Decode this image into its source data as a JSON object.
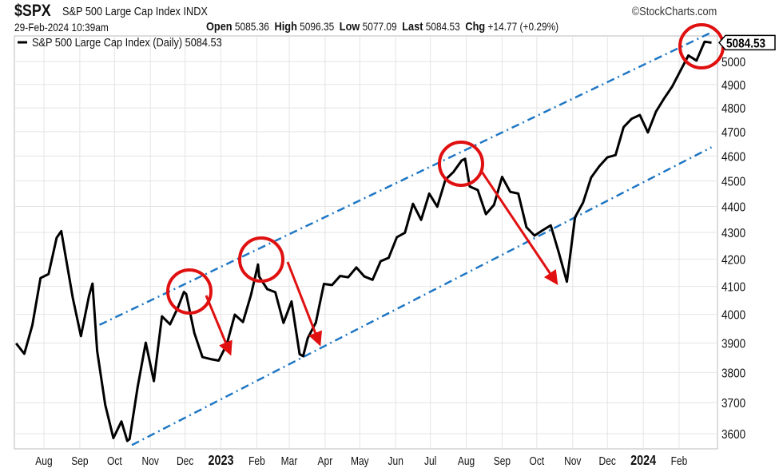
{
  "header": {
    "symbol": "$SPX",
    "name": "S&P 500 Large Cap Index INDX",
    "copyright": "©StockCharts.com",
    "datetime": "29-Feb-2024 10:39am",
    "open_label": "Open",
    "open": "5085.36",
    "high_label": "High",
    "high": "5096.35",
    "low_label": "Low",
    "low": "5077.09",
    "last_label": "Last",
    "last": "5084.53",
    "chg_label": "Chg",
    "chg": "+14.77 (+0.29%)"
  },
  "chart_data": {
    "type": "line",
    "legend": "S&P 500 Large Cap Index (Daily) 5084.53",
    "legend_placement": "top-left",
    "last_value_label": "5084.53",
    "y_scale": "log",
    "ylim": [
      3540,
      5120
    ],
    "grid": true,
    "y_ticks": [
      3600,
      3700,
      3800,
      3900,
      4000,
      4100,
      4200,
      4300,
      4400,
      4500,
      4600,
      4700,
      4800,
      4900,
      5000
    ],
    "x_ticks": [
      {
        "date": "2022-08-01",
        "label": "Aug"
      },
      {
        "date": "2022-09-01",
        "label": "Sep"
      },
      {
        "date": "2022-10-01",
        "label": "Oct"
      },
      {
        "date": "2022-11-01",
        "label": "Nov"
      },
      {
        "date": "2022-12-01",
        "label": "Dec"
      },
      {
        "date": "2023-01-01",
        "label": "2023",
        "bold": true
      },
      {
        "date": "2023-02-01",
        "label": "Feb"
      },
      {
        "date": "2023-03-01",
        "label": "Mar"
      },
      {
        "date": "2023-04-01",
        "label": "Apr"
      },
      {
        "date": "2023-05-01",
        "label": "May"
      },
      {
        "date": "2023-06-01",
        "label": "Jun"
      },
      {
        "date": "2023-07-01",
        "label": "Jul"
      },
      {
        "date": "2023-08-01",
        "label": "Aug"
      },
      {
        "date": "2023-09-01",
        "label": "Sep"
      },
      {
        "date": "2023-10-01",
        "label": "Oct"
      },
      {
        "date": "2023-11-01",
        "label": "Nov"
      },
      {
        "date": "2023-12-01",
        "label": "Dec"
      },
      {
        "date": "2024-01-01",
        "label": "2024",
        "bold": true
      },
      {
        "date": "2024-02-01",
        "label": "Feb"
      }
    ],
    "series": [
      {
        "color": "#000000",
        "points": [
          [
            "2022-07-08",
            3899
          ],
          [
            "2022-07-15",
            3863
          ],
          [
            "2022-07-22",
            3962
          ],
          [
            "2022-07-29",
            4130
          ],
          [
            "2022-08-05",
            4145
          ],
          [
            "2022-08-12",
            4280
          ],
          [
            "2022-08-16",
            4305
          ],
          [
            "2022-08-19",
            4228
          ],
          [
            "2022-08-26",
            4057
          ],
          [
            "2022-09-02",
            3924
          ],
          [
            "2022-09-09",
            4067
          ],
          [
            "2022-09-12",
            4110
          ],
          [
            "2022-09-16",
            3873
          ],
          [
            "2022-09-23",
            3693
          ],
          [
            "2022-09-30",
            3586
          ],
          [
            "2022-10-07",
            3639
          ],
          [
            "2022-10-12",
            3577
          ],
          [
            "2022-10-14",
            3583
          ],
          [
            "2022-10-21",
            3752
          ],
          [
            "2022-10-28",
            3901
          ],
          [
            "2022-11-04",
            3771
          ],
          [
            "2022-11-11",
            3993
          ],
          [
            "2022-11-18",
            3965
          ],
          [
            "2022-11-25",
            4026
          ],
          [
            "2022-11-30",
            4080
          ],
          [
            "2022-12-02",
            4072
          ],
          [
            "2022-12-09",
            3934
          ],
          [
            "2022-12-16",
            3852
          ],
          [
            "2022-12-23",
            3845
          ],
          [
            "2022-12-30",
            3840
          ],
          [
            "2023-01-06",
            3895
          ],
          [
            "2023-01-13",
            3999
          ],
          [
            "2023-01-20",
            3973
          ],
          [
            "2023-01-27",
            4070
          ],
          [
            "2023-02-02",
            4180
          ],
          [
            "2023-02-03",
            4136
          ],
          [
            "2023-02-10",
            4090
          ],
          [
            "2023-02-17",
            4079
          ],
          [
            "2023-02-24",
            3970
          ],
          [
            "2023-03-03",
            4046
          ],
          [
            "2023-03-10",
            3862
          ],
          [
            "2023-03-13",
            3855
          ],
          [
            "2023-03-17",
            3917
          ],
          [
            "2023-03-24",
            3971
          ],
          [
            "2023-03-31",
            4109
          ],
          [
            "2023-04-07",
            4105
          ],
          [
            "2023-04-14",
            4138
          ],
          [
            "2023-04-21",
            4133
          ],
          [
            "2023-04-28",
            4169
          ],
          [
            "2023-05-05",
            4136
          ],
          [
            "2023-05-12",
            4124
          ],
          [
            "2023-05-19",
            4192
          ],
          [
            "2023-05-26",
            4205
          ],
          [
            "2023-06-02",
            4282
          ],
          [
            "2023-06-09",
            4299
          ],
          [
            "2023-06-16",
            4410
          ],
          [
            "2023-06-23",
            4348
          ],
          [
            "2023-06-30",
            4450
          ],
          [
            "2023-07-07",
            4399
          ],
          [
            "2023-07-14",
            4505
          ],
          [
            "2023-07-21",
            4536
          ],
          [
            "2023-07-28",
            4582
          ],
          [
            "2023-07-31",
            4589
          ],
          [
            "2023-08-04",
            4478
          ],
          [
            "2023-08-11",
            4464
          ],
          [
            "2023-08-18",
            4370
          ],
          [
            "2023-08-25",
            4406
          ],
          [
            "2023-09-01",
            4516
          ],
          [
            "2023-09-08",
            4457
          ],
          [
            "2023-09-15",
            4450
          ],
          [
            "2023-09-22",
            4320
          ],
          [
            "2023-09-29",
            4288
          ],
          [
            "2023-10-06",
            4308
          ],
          [
            "2023-10-13",
            4327
          ],
          [
            "2023-10-20",
            4224
          ],
          [
            "2023-10-27",
            4117
          ],
          [
            "2023-11-03",
            4358
          ],
          [
            "2023-11-10",
            4415
          ],
          [
            "2023-11-17",
            4514
          ],
          [
            "2023-11-24",
            4559
          ],
          [
            "2023-12-01",
            4595
          ],
          [
            "2023-12-08",
            4604
          ],
          [
            "2023-12-15",
            4719
          ],
          [
            "2023-12-22",
            4754
          ],
          [
            "2023-12-29",
            4770
          ],
          [
            "2024-01-05",
            4697
          ],
          [
            "2024-01-12",
            4784
          ],
          [
            "2024-01-19",
            4840
          ],
          [
            "2024-01-26",
            4891
          ],
          [
            "2024-02-02",
            4959
          ],
          [
            "2024-02-09",
            5027
          ],
          [
            "2024-02-16",
            5005
          ],
          [
            "2024-02-23",
            5089
          ],
          [
            "2024-02-29",
            5084.53
          ]
        ]
      }
    ],
    "trend_channel": {
      "color": "#1f77c4",
      "style": "dash-dot",
      "upper": [
        [
          "2022-09-18",
          3963
        ],
        [
          "2024-02-29",
          5131
        ]
      ],
      "lower": [
        [
          "2022-10-16",
          3564
        ],
        [
          "2024-02-29",
          4636
        ]
      ]
    },
    "annotations": {
      "color": "#e01010",
      "circles": 4,
      "arrows": 3
    }
  }
}
